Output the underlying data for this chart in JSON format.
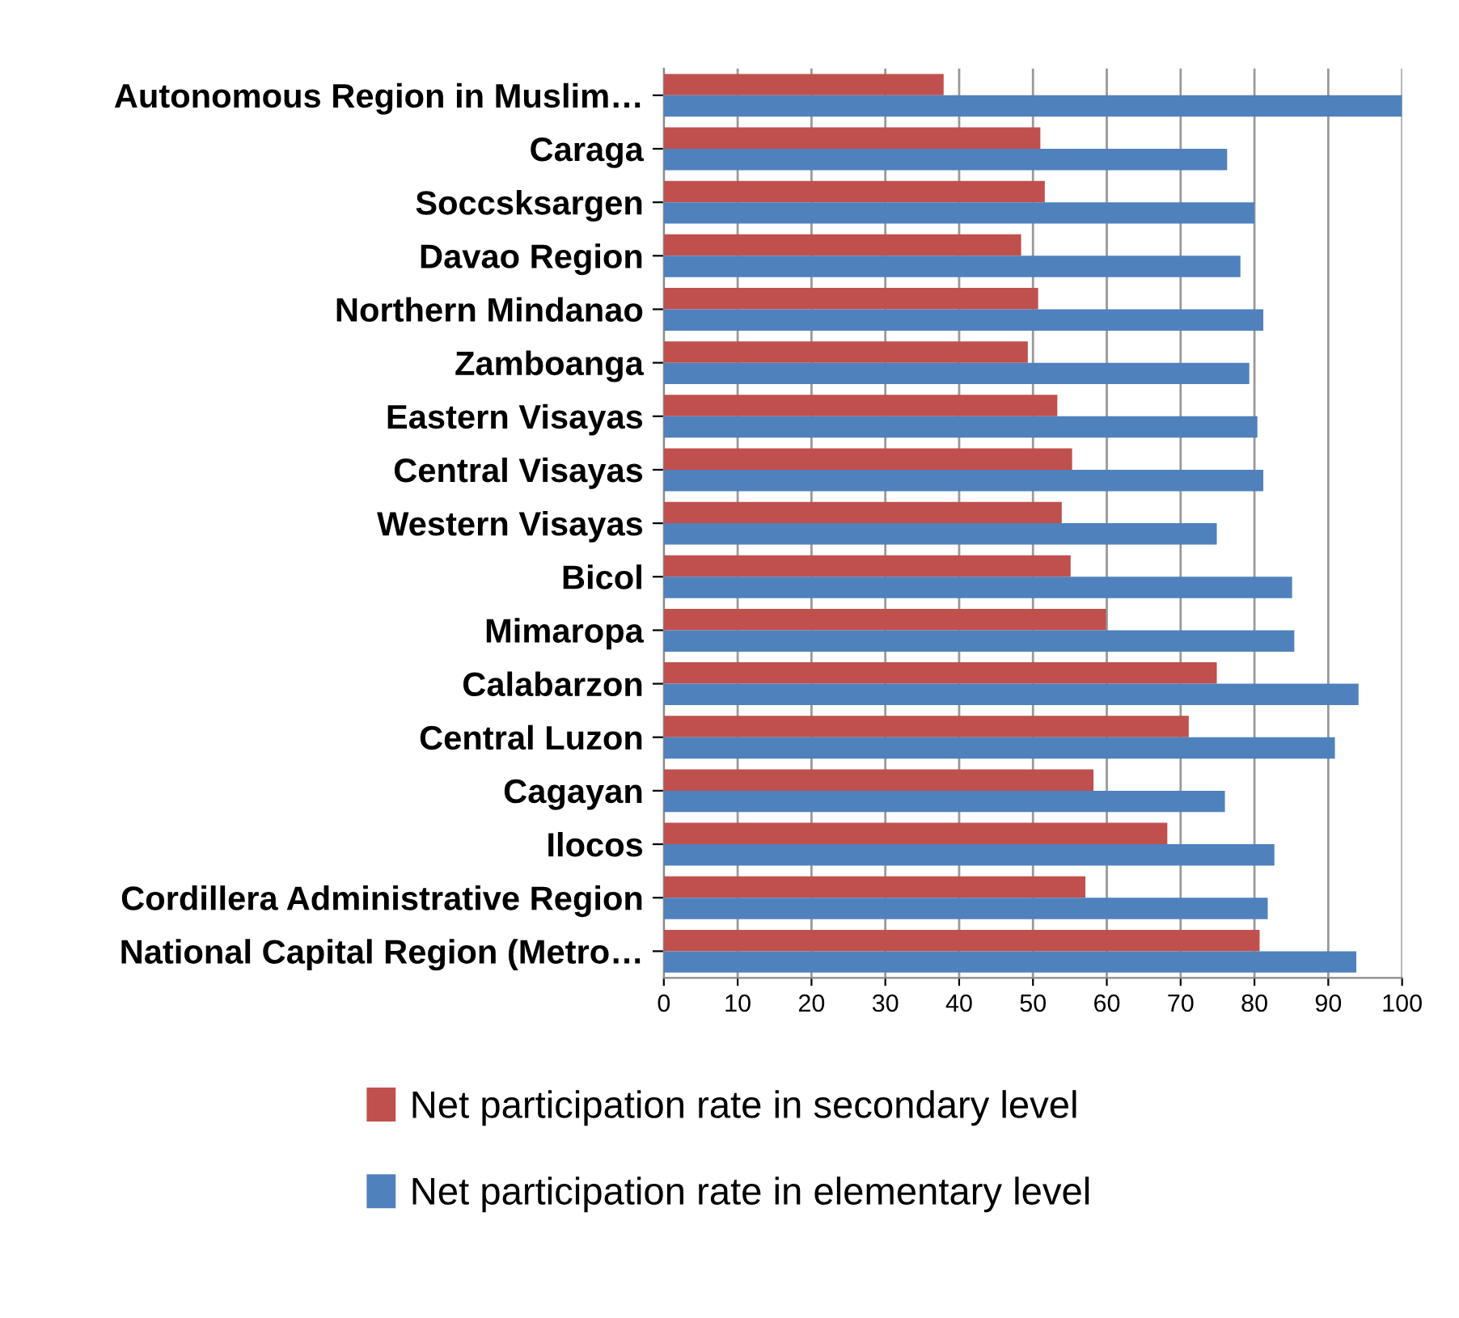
{
  "chart_data": {
    "type": "bar",
    "orientation": "horizontal",
    "categories": [
      "Autonomous Region in Muslim…",
      "Caraga",
      "Soccsksargen",
      "Davao Region",
      "Northern Mindanao",
      "Zamboanga",
      "Eastern Visayas",
      "Central Visayas",
      "Western Visayas",
      "Bicol",
      "Mimaropa",
      "Calabarzon",
      "Central Luzon",
      "Cagayan",
      "Ilocos",
      "Cordillera Administrative Region",
      "National Capital Region (Metro…"
    ],
    "series": [
      {
        "name": "Net participation rate in secondary level",
        "color": "#c0504d",
        "values": [
          37.9,
          51.0,
          51.6,
          48.4,
          50.7,
          49.3,
          53.3,
          55.3,
          53.9,
          55.1,
          59.9,
          74.9,
          71.1,
          58.2,
          68.2,
          57.1,
          80.7
        ]
      },
      {
        "name": "Net participation rate in elementary level",
        "color": "#4f81bd",
        "values": [
          100,
          76.3,
          80.0,
          78.1,
          81.2,
          79.3,
          80.4,
          81.2,
          74.9,
          85.1,
          85.4,
          94.1,
          90.9,
          76.0,
          82.7,
          81.8,
          93.8
        ]
      }
    ],
    "xlim": [
      0,
      100
    ],
    "xticks": [
      0,
      10,
      20,
      30,
      40,
      50,
      60,
      70,
      80,
      90,
      100
    ],
    "grid": "x",
    "legend": "bottom"
  }
}
